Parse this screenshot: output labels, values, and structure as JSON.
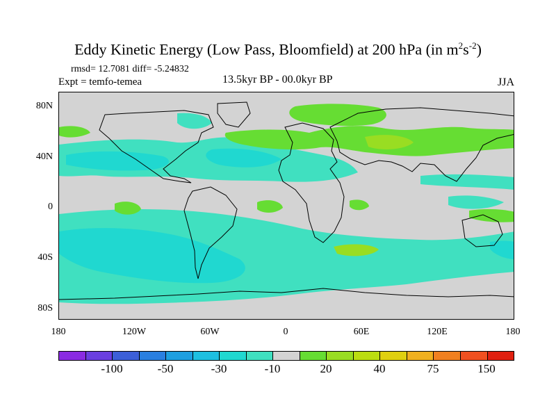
{
  "title_main": "Eddy Kinetic Energy (Low Pass, Bloomfield) at 200 hPa (in m",
  "title_sup1": "2",
  "title_mid": "s",
  "title_sup2": "-2",
  "title_end": ")",
  "stats": "rmsd= 12.7081 diff= -5.24832",
  "expt": "Expt = temfo-temea",
  "center_label": "13.5kyr BP - 00.0kyr BP",
  "season": "JJA",
  "y_ticks": [
    "80N",
    "40N",
    "0",
    "40S",
    "80S"
  ],
  "x_ticks": [
    "180",
    "120W",
    "60W",
    "0",
    "60E",
    "120E",
    "180"
  ],
  "colorbar": {
    "colors": [
      "#8a2be2",
      "#6a3fe0",
      "#3c5fd8",
      "#2a7fe0",
      "#1e9fe0",
      "#1ebfe0",
      "#20d8d0",
      "#40e0c0",
      "#d3d3d3",
      "#66dd33",
      "#99dd22",
      "#bbdd11",
      "#e0d010",
      "#f0b020",
      "#f08020",
      "#f05020",
      "#e02010"
    ],
    "labels": [
      "-100",
      "-50",
      "-30",
      "-10",
      "20",
      "40",
      "75",
      "150"
    ]
  },
  "map": {
    "background": "#d3d3d3",
    "colors": {
      "neg_light": "#40e0c0",
      "neg_mid": "#20d8d0",
      "pos_light": "#66dd33",
      "pos_mid": "#99dd22"
    }
  }
}
